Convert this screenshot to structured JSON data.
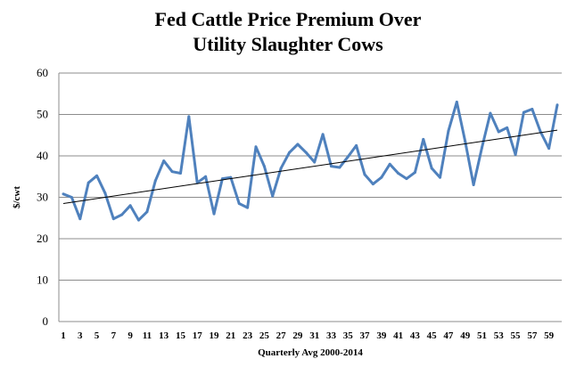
{
  "chart_data": {
    "type": "line",
    "title": "Fed Cattle Price Premium Over\nUtility Slaughter Cows",
    "xlabel": "Quarterly Avg 2000-2014",
    "ylabel": "$/cwt",
    "ylim": [
      0,
      60
    ],
    "yticks": [
      0,
      10,
      20,
      30,
      40,
      50,
      60
    ],
    "xtick_labels": [
      "1",
      "3",
      "5",
      "7",
      "9",
      "11",
      "13",
      "15",
      "17",
      "19",
      "21",
      "23",
      "25",
      "27",
      "29",
      "31",
      "33",
      "35",
      "37",
      "39",
      "41",
      "43",
      "45",
      "47",
      "49",
      "51",
      "53",
      "55",
      "57",
      "59"
    ],
    "grid": true,
    "legend": "none",
    "series": [
      {
        "color": "#4F81BD",
        "x": [
          1,
          2,
          3,
          4,
          5,
          6,
          7,
          8,
          9,
          10,
          11,
          12,
          13,
          14,
          15,
          16,
          17,
          18,
          19,
          20,
          21,
          22,
          23,
          24,
          25,
          26,
          27,
          28,
          29,
          30,
          31,
          32,
          33,
          34,
          35,
          36,
          37,
          38,
          39,
          40,
          41,
          42,
          43,
          44,
          45,
          46,
          47,
          48,
          49,
          50,
          51,
          52,
          53,
          54,
          55,
          56,
          57,
          58,
          59,
          60
        ],
        "values": [
          30.8,
          30,
          24.8,
          33.5,
          35.2,
          31,
          24.8,
          25.8,
          28,
          24.5,
          26.5,
          34,
          38.8,
          36.2,
          35.8,
          49.5,
          33.5,
          35,
          26,
          34.5,
          34.8,
          28.5,
          27.5,
          42.2,
          37.5,
          30.3,
          37,
          40.8,
          42.8,
          40.8,
          38.5,
          45.2,
          37.5,
          37.2,
          39.8,
          42.5,
          35.5,
          33.2,
          34.8,
          38,
          35.8,
          34.5,
          36,
          44,
          37,
          34.8,
          46,
          53,
          43.5,
          33,
          42,
          50.3,
          45.8,
          46.8,
          40.3,
          50.5,
          51.3,
          45.8,
          41.8,
          52.3
        ]
      }
    ],
    "trendline": {
      "color": "#000000",
      "x": [
        1,
        60
      ],
      "values": [
        28.5,
        46.2
      ]
    }
  }
}
